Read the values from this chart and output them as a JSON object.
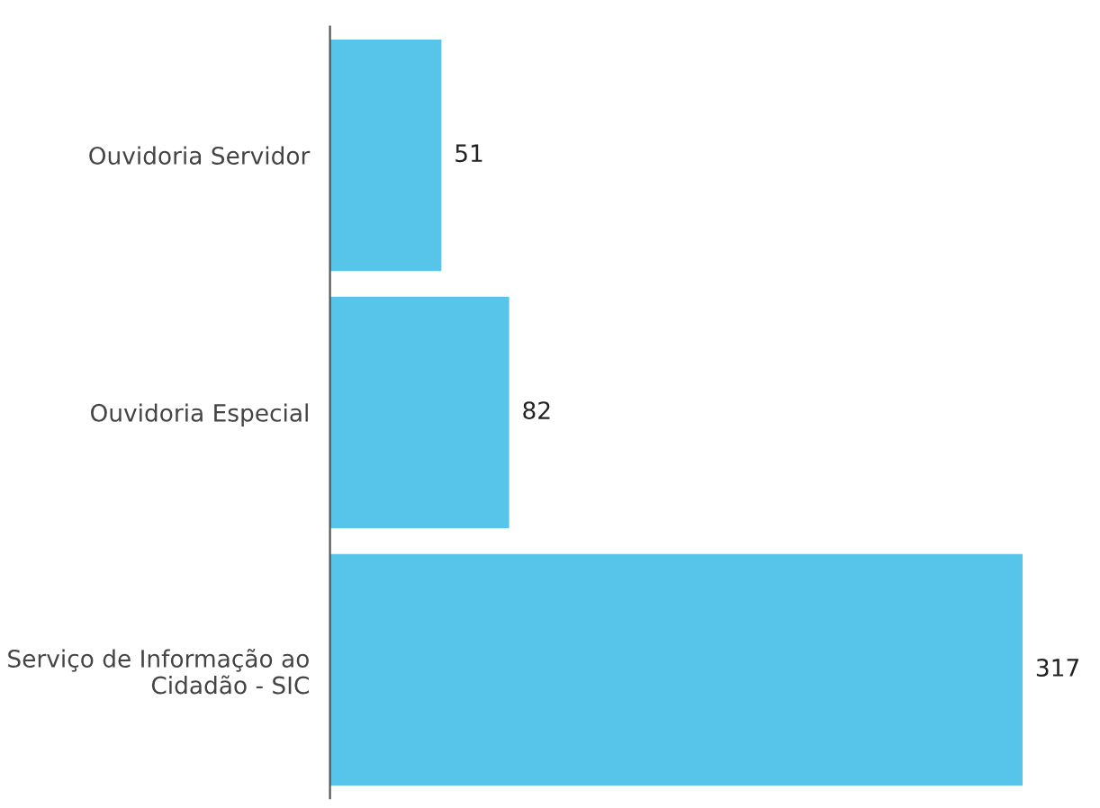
{
  "chart_data": {
    "type": "bar",
    "orientation": "horizontal",
    "categories": [
      "Ouvidoria Servidor",
      "Ouvidoria Especial",
      "Serviço de Informação ao Cidadão - SIC"
    ],
    "values": [
      51,
      82,
      317
    ],
    "color": "#56c5e9",
    "data_labels": true,
    "grid": false,
    "legend": false
  }
}
